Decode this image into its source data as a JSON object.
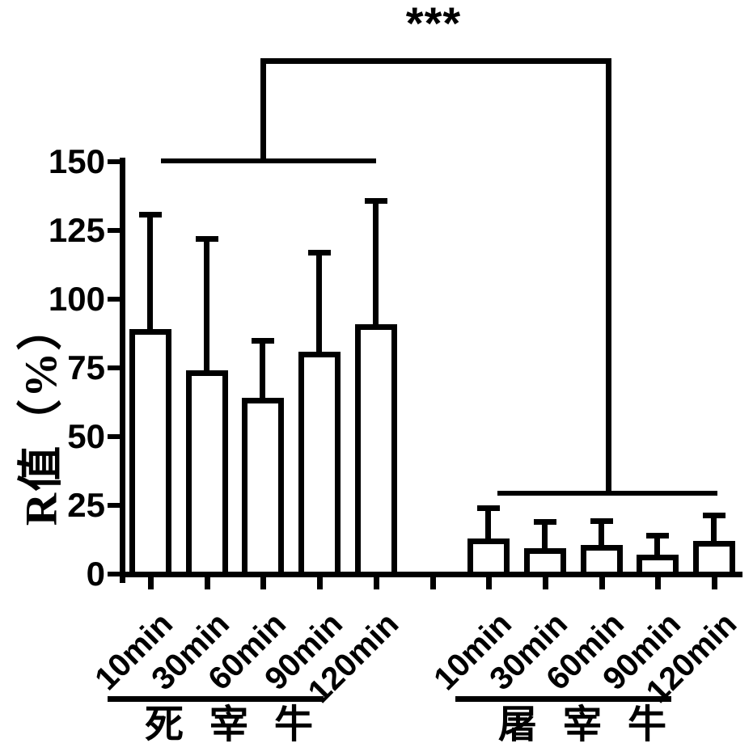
{
  "figure": {
    "background": "#ffffff",
    "ink": "#000000"
  },
  "chart_data": {
    "type": "bar",
    "title": "",
    "ylabel": "R值（%）",
    "xlabel": "",
    "ylim": [
      0,
      150
    ],
    "yticks": [
      0,
      25,
      50,
      75,
      100,
      125,
      150
    ],
    "grid": false,
    "legend": "none",
    "bar_fill": "#ffffff",
    "bar_outline": "#000000",
    "error_bars": "upper SD whisker with cap",
    "categories": [
      "10min",
      "30min",
      "60min",
      "90min",
      "120min"
    ],
    "groups": [
      {
        "name": "死 宰 牛",
        "categories": [
          "10min",
          "30min",
          "60min",
          "90min",
          "120min"
        ],
        "values": [
          89,
          74,
          64,
          81,
          91
        ],
        "errors": [
          42,
          48,
          21,
          36,
          45
        ]
      },
      {
        "name": "屠 宰 牛",
        "categories": [
          "10min",
          "30min",
          "60min",
          "90min",
          "120min"
        ],
        "values": [
          13,
          9.5,
          10.5,
          7,
          12
        ],
        "errors": [
          11,
          9.5,
          9,
          7,
          9.5
        ]
      }
    ],
    "significance": {
      "label": "***",
      "between": [
        "死 宰 牛",
        "屠 宰 牛"
      ]
    }
  }
}
